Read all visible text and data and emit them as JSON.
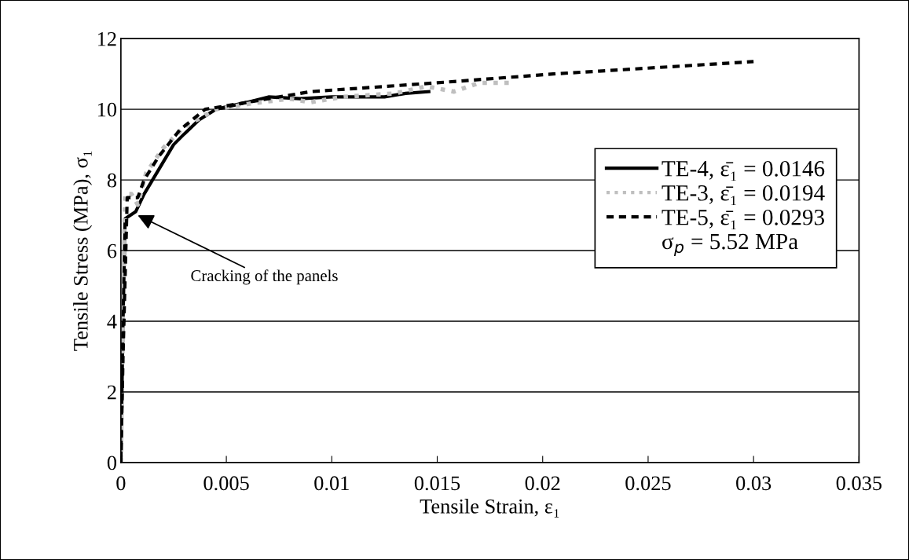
{
  "chart_data": {
    "type": "line",
    "xlabel": "Tensile Strain, ε₁",
    "ylabel": "Tensile Stress (MPa), σ₁",
    "xlim": [
      0,
      0.035
    ],
    "ylim": [
      0,
      12
    ],
    "xticks": [
      0,
      0.005,
      0.01,
      0.015,
      0.02,
      0.025,
      0.03,
      0.035
    ],
    "yticks": [
      0,
      2,
      4,
      6,
      8,
      10,
      12
    ],
    "grid": "y",
    "legend": "right",
    "marker": "none",
    "series": [
      {
        "name": "TE-4, ε̄₁ = 0.0146",
        "color": "#000000",
        "line_style": "solid",
        "x": [
          0,
          0.0001,
          0.0002,
          0.0007,
          0.0011,
          0.0015,
          0.002,
          0.0025,
          0.003,
          0.0037,
          0.0045,
          0.006,
          0.007,
          0.0085,
          0.01,
          0.0125,
          0.0135,
          0.0146
        ],
        "values": [
          0,
          4.0,
          6.9,
          7.1,
          7.6,
          8.0,
          8.5,
          9.0,
          9.3,
          9.7,
          10.0,
          10.2,
          10.35,
          10.3,
          10.35,
          10.35,
          10.45,
          10.5
        ]
      },
      {
        "name": "TE-3, ε̄₁ = 0.0194",
        "color": "#bfbfbf",
        "line_style": "dotted",
        "x": [
          0,
          0.0001,
          0.0002,
          0.0005,
          0.0008,
          0.0012,
          0.002,
          0.003,
          0.0045,
          0.006,
          0.008,
          0.009,
          0.0105,
          0.013,
          0.0145,
          0.0158,
          0.017,
          0.0187
        ],
        "values": [
          0,
          4.5,
          7.6,
          7.6,
          7.3,
          8.2,
          8.9,
          9.5,
          10.0,
          10.15,
          10.3,
          10.2,
          10.35,
          10.45,
          10.65,
          10.5,
          10.75,
          10.75
        ]
      },
      {
        "name": "TE-5, ε̄₁ = 0.0293",
        "color": "#000000",
        "line_style": "dashed",
        "x": [
          0,
          0.0001,
          0.0003,
          0.0008,
          0.0011,
          0.0018,
          0.0028,
          0.004,
          0.006,
          0.009,
          0.015,
          0.0205,
          0.03
        ],
        "values": [
          0,
          3.0,
          7.5,
          7.5,
          8.0,
          8.67,
          9.42,
          10.0,
          10.2,
          10.5,
          10.75,
          11.0,
          11.35
        ]
      }
    ],
    "annotations": [
      {
        "text": "Cracking of the panels",
        "x": 0.0008,
        "y": 7.0
      },
      "σ$_{p}$ = 5.52 MPa"
    ]
  }
}
